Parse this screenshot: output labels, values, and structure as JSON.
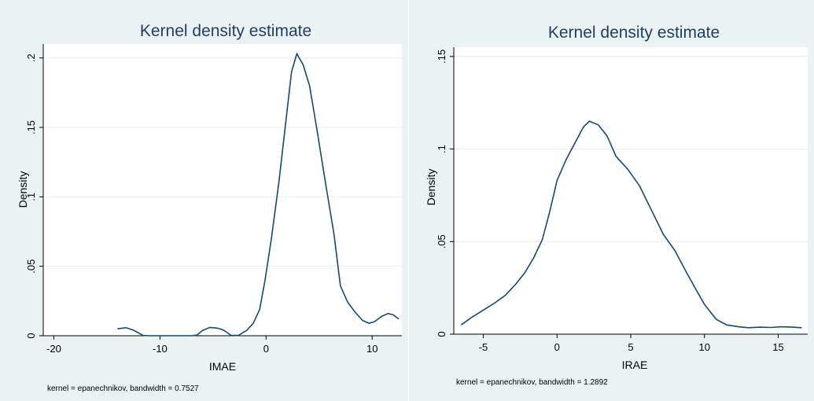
{
  "chart_data": [
    {
      "type": "line",
      "title": "Kernel density estimate",
      "xlabel": "IMAE",
      "ylabel": "Density",
      "note": "kernel = epanechnikov, bandwidth = 0.7527",
      "xlim": [
        -21,
        12.8
      ],
      "ylim": [
        0,
        0.21
      ],
      "xticks": [
        -20,
        -10,
        0,
        10
      ],
      "yticks": [
        0,
        0.05,
        0.1,
        0.15,
        0.2
      ],
      "yticklabels": [
        "0",
        ".05",
        ".1",
        ".15",
        ".2"
      ],
      "grid": true,
      "line_color": "#1a476f",
      "x": [
        -14,
        -13.2,
        -12.5,
        -11.6,
        -11,
        -10,
        -9,
        -8,
        -7,
        -6.5,
        -6,
        -5.3,
        -4.6,
        -4,
        -3.3,
        -2.6,
        -1.8,
        -1.2,
        -0.6,
        -0.1,
        0.5,
        1.2,
        1.8,
        2.4,
        2.9,
        3.5,
        4.1,
        4.8,
        5.6,
        6.4,
        7,
        7.7,
        8.4,
        9.1,
        9.7,
        10.2,
        10.9,
        11.5,
        12,
        12.5
      ],
      "y": [
        0.005,
        0.0058,
        0.004,
        0.0003,
        0,
        0,
        0,
        0,
        0,
        0.0005,
        0.0038,
        0.006,
        0.0055,
        0.004,
        0.0003,
        0.0002,
        0.004,
        0.009,
        0.019,
        0.04,
        0.07,
        0.11,
        0.15,
        0.19,
        0.203,
        0.195,
        0.18,
        0.148,
        0.11,
        0.073,
        0.036,
        0.024,
        0.017,
        0.011,
        0.009,
        0.01,
        0.014,
        0.016,
        0.015,
        0.012
      ]
    },
    {
      "type": "line",
      "title": "Kernel density estimate",
      "xlabel": "IRAE",
      "ylabel": "Density",
      "note": "kernel = epanechnikov, bandwidth = 1.2892",
      "xlim": [
        -7,
        17
      ],
      "ylim": [
        0,
        0.155
      ],
      "xticks": [
        -5,
        0,
        5,
        10,
        15
      ],
      "yticks": [
        0,
        0.05,
        0.1,
        0.15
      ],
      "yticklabels": [
        "0",
        ".05",
        ".1",
        ".15"
      ],
      "grid": true,
      "line_color": "#1a476f",
      "x": [
        -6.5,
        -5.8,
        -5,
        -4.2,
        -3.5,
        -2.8,
        -2.2,
        -1.6,
        -1,
        -0.5,
        0,
        0.6,
        1.2,
        1.8,
        2.2,
        2.8,
        3.4,
        4,
        4.8,
        5.6,
        6.4,
        7.2,
        8,
        8.8,
        9.5,
        10,
        10.8,
        11.5,
        12.3,
        13,
        13.8,
        14.5,
        15.2,
        16,
        16.6
      ],
      "y": [
        0.005,
        0.009,
        0.013,
        0.017,
        0.021,
        0.027,
        0.033,
        0.041,
        0.051,
        0.066,
        0.083,
        0.094,
        0.103,
        0.112,
        0.115,
        0.113,
        0.107,
        0.096,
        0.089,
        0.08,
        0.067,
        0.054,
        0.045,
        0.033,
        0.023,
        0.016,
        0.008,
        0.005,
        0.004,
        0.0035,
        0.0038,
        0.0036,
        0.004,
        0.0038,
        0.0035
      ]
    }
  ]
}
